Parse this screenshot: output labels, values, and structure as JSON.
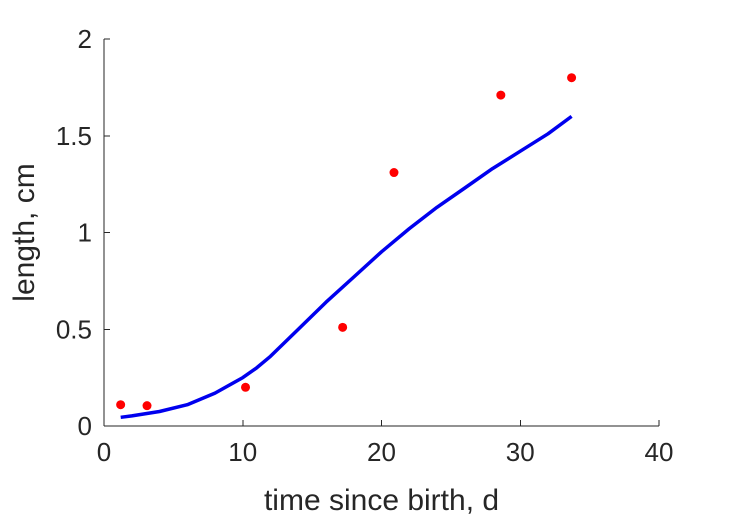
{
  "chart_data": {
    "type": "scatter",
    "xlabel": "time since birth, d",
    "ylabel": "length, cm",
    "xlim": [
      0,
      40
    ],
    "ylim": [
      0,
      2
    ],
    "xticks": [
      0,
      10,
      20,
      30,
      40
    ],
    "yticks": [
      0,
      0.5,
      1,
      1.5,
      2
    ],
    "xtick_labels": [
      "0",
      "10",
      "20",
      "30",
      "40"
    ],
    "ytick_labels": [
      "0",
      "0.5",
      "1",
      "1.5",
      "2"
    ],
    "grid": false,
    "series": [
      {
        "kind": "points",
        "color": "#ff0000",
        "x": [
          1.2,
          3.1,
          10.2,
          17.2,
          20.9,
          28.6,
          33.7
        ],
        "y": [
          0.11,
          0.105,
          0.2,
          0.51,
          1.31,
          1.71,
          1.8
        ]
      },
      {
        "kind": "line",
        "color": "#0000ee",
        "x": [
          1.2,
          2,
          4,
          6,
          8,
          10,
          11,
          12,
          14,
          16,
          18,
          20,
          22,
          24,
          26,
          28,
          30,
          32,
          33.7
        ],
        "y": [
          0.045,
          0.052,
          0.075,
          0.11,
          0.17,
          0.25,
          0.3,
          0.36,
          0.5,
          0.64,
          0.77,
          0.9,
          1.02,
          1.13,
          1.23,
          1.33,
          1.42,
          1.51,
          1.6
        ]
      }
    ]
  }
}
